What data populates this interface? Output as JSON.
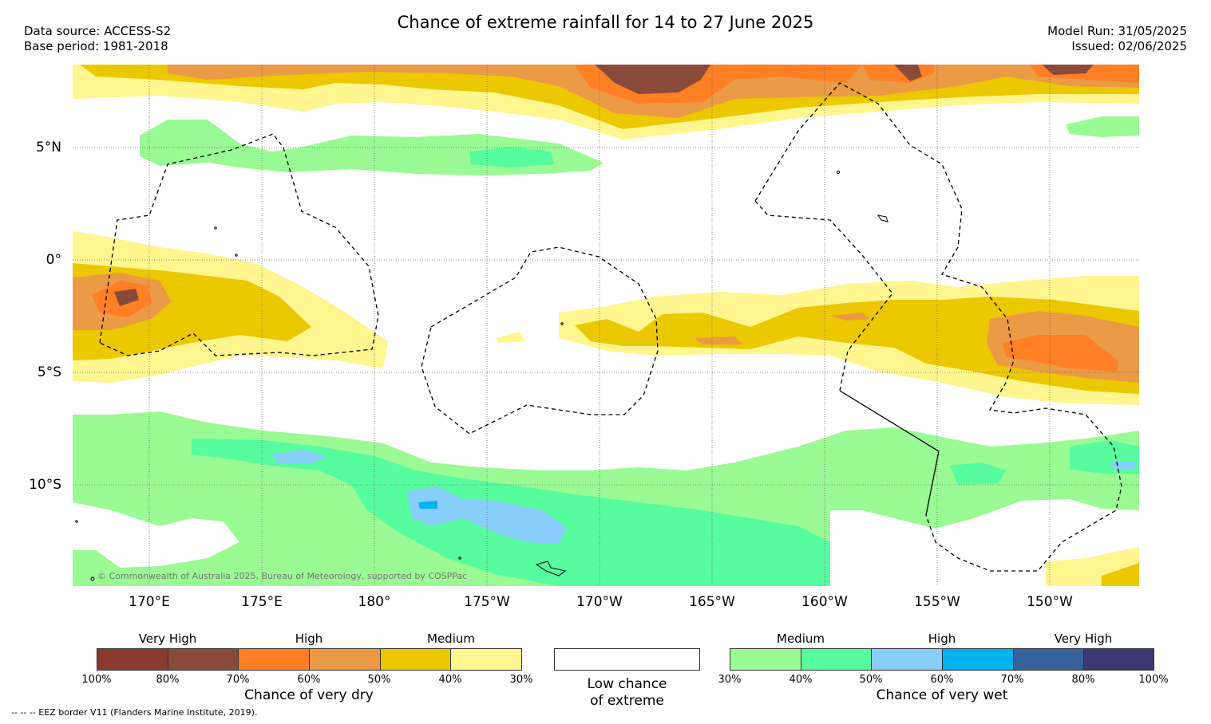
{
  "title": "Chance of extreme rainfall for 14 to 27 June 2025",
  "meta": {
    "data_source": "Data source: ACCESS-S2",
    "base_period": "Base period: 1981-2018",
    "model_run": "Model Run: 31/05/2025",
    "issued": "Issued: 02/06/2025"
  },
  "map": {
    "lat_labels": [
      "5°N",
      "0°",
      "5°S",
      "10°S"
    ],
    "lon_labels": [
      "170°E",
      "175°E",
      "180°",
      "175°W",
      "170°W",
      "165°W",
      "160°W",
      "155°W",
      "150°W"
    ],
    "copyright": "© Commonwealth of Australia 2025, Bureau of Meteorology, supported by COSPPac"
  },
  "legend": {
    "dry": {
      "categories": [
        "Very High",
        "High",
        "Medium"
      ],
      "ticks": [
        "100%",
        "80%",
        "70%",
        "60%",
        "50%",
        "40%",
        "30%"
      ],
      "colors": [
        "#8b3a30",
        "#8a4a3a",
        "#ff7f24",
        "#eb9a46",
        "#ebc800",
        "#fff68f"
      ],
      "title": "Chance of very dry"
    },
    "neutral": {
      "line1": "Low chance",
      "line2": "of extreme",
      "color": "#ffffff"
    },
    "wet": {
      "categories": [
        "Medium",
        "High",
        "Very High"
      ],
      "ticks": [
        "30%",
        "40%",
        "50%",
        "60%",
        "70%",
        "80%",
        "100%"
      ],
      "colors": [
        "#9afa94",
        "#56fc9e",
        "#87cefa",
        "#00b2ee",
        "#36619b",
        "#3d3a73"
      ],
      "title": "Chance of very wet"
    }
  },
  "footnote": "-- -- -- EEZ border V11 (Flanders Marine Institute, 2019)."
}
